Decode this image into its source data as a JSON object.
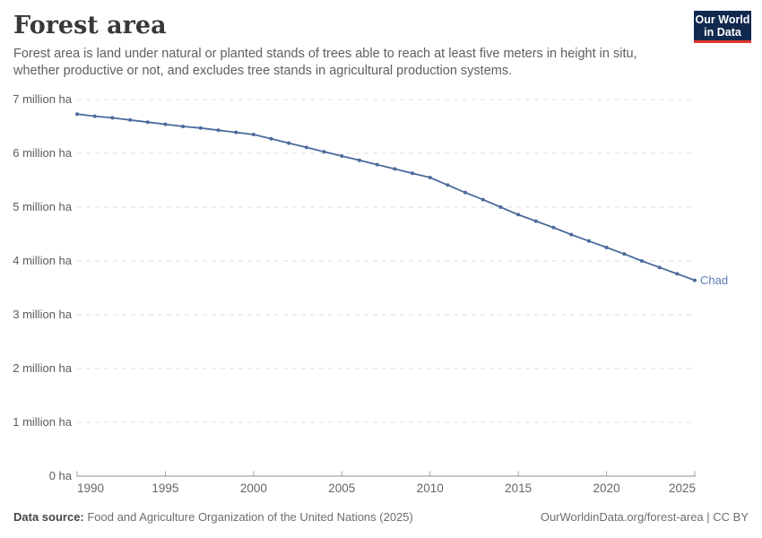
{
  "header": {
    "title": "Forest area",
    "subtitle": "Forest area is land under natural or planted stands of trees able to reach at least five meters in height in situ, whether productive or not, and excludes tree stands in agricultural production systems."
  },
  "logo": {
    "line1": "Our World",
    "line2": "in Data"
  },
  "chart_data": {
    "type": "line",
    "title": "Forest area",
    "unit": "million ha",
    "xlabel": "",
    "ylabel": "",
    "xlim": [
      1990,
      2025
    ],
    "ylim": [
      0,
      7
    ],
    "grid": true,
    "legend_position": "end-of-line label",
    "x": [
      1990,
      1991,
      1992,
      1993,
      1994,
      1995,
      1996,
      1997,
      1998,
      1999,
      2000,
      2001,
      2002,
      2003,
      2004,
      2005,
      2006,
      2007,
      2008,
      2009,
      2010,
      2011,
      2012,
      2013,
      2014,
      2015,
      2016,
      2017,
      2018,
      2019,
      2020,
      2021,
      2022,
      2023,
      2024,
      2025
    ],
    "series": [
      {
        "name": "Chad",
        "color": "#4C6A9C",
        "values": [
          6.73,
          6.69,
          6.66,
          6.62,
          6.58,
          6.54,
          6.5,
          6.47,
          6.43,
          6.39,
          6.35,
          6.27,
          6.19,
          6.11,
          6.03,
          5.95,
          5.87,
          5.79,
          5.71,
          5.63,
          5.55,
          5.41,
          5.27,
          5.14,
          5.0,
          4.86,
          4.74,
          4.62,
          4.49,
          4.37,
          4.25,
          4.13,
          4.0,
          3.88,
          3.76,
          3.64
        ]
      }
    ],
    "yticks": [
      {
        "value": 7,
        "label": "7 million ha"
      },
      {
        "value": 6,
        "label": "6 million ha"
      },
      {
        "value": 5,
        "label": "5 million ha"
      },
      {
        "value": 4,
        "label": "4 million ha"
      },
      {
        "value": 3,
        "label": "3 million ha"
      },
      {
        "value": 2,
        "label": "2 million ha"
      },
      {
        "value": 1,
        "label": "1 million ha"
      },
      {
        "value": 0,
        "label": "0 ha"
      }
    ],
    "xticks": [
      1990,
      1995,
      2000,
      2005,
      2010,
      2015,
      2020,
      2025
    ]
  },
  "footer": {
    "source_label": "Data source:",
    "source_text": " Food and Agriculture Organization of the United Nations (2025)",
    "attribution": "OurWorldinData.org/forest-area | CC BY"
  },
  "colors": {
    "line": "#4C6A9C",
    "series_label": "#5B7BB5",
    "gridline": "#DDDDDD",
    "axis": "#8F8F8F",
    "axis_tick": "#A3A3A3",
    "logo_background": "#12294F",
    "logo_underline": "#E5362C"
  }
}
